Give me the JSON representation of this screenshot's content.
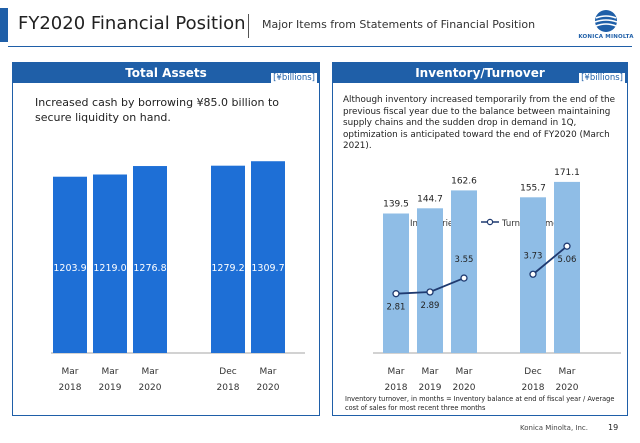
{
  "header": {
    "title": "FY2020 Financial Position",
    "subtitle": "Major Items from Statements of Financial Position",
    "logo_text": "KONICA MINOLTA"
  },
  "left_panel": {
    "title": "Total Assets",
    "unit": "[¥billions]",
    "description": "Increased cash by borrowing ¥85.0 billion to secure liquidity on hand."
  },
  "right_panel": {
    "title": "Inventory/Turnover",
    "unit": "[¥billions]",
    "description": "Although inventory increased temporarily from the end of the previous fiscal year due to the balance between maintaining supply chains and the sudden drop in demand in 1Q, optimization is anticipated toward the end of FY2020 (March 2021).",
    "footnote": "Inventory turnover, in months = Inventory balance at end of fiscal year / Average cost of sales for most recent three months"
  },
  "footer": {
    "company": "Konica Minolta, Inc.",
    "page": "19"
  },
  "colors": {
    "brand": "#1f5fa8",
    "bar_left": "#1e6fd6",
    "bar_right": "#8fbde6",
    "line": "#1f3a70"
  },
  "chart_data": [
    {
      "type": "bar",
      "title": "Total Assets",
      "categories": [
        "Mar 2018",
        "Mar 2019",
        "Mar 2020",
        "Dec 2018",
        "Mar 2020"
      ],
      "category_lines": [
        [
          "Mar",
          "2018"
        ],
        [
          "Mar",
          "2019"
        ],
        [
          "Mar",
          "2020"
        ],
        [
          "Dec",
          "2018"
        ],
        [
          "Mar",
          "2020"
        ]
      ],
      "values": [
        1203.9,
        1219.0,
        1276.8,
        1279.2,
        1309.7
      ],
      "value_labels": [
        "1203.9",
        "1219.0",
        "1276.8",
        "1279.2",
        "1309.7"
      ],
      "ylim": [
        0,
        1400
      ],
      "grid": false
    },
    {
      "type": "bar+line",
      "title": "Inventory/Turnover",
      "categories": [
        "Mar 2018",
        "Mar 2019",
        "Mar 2020",
        "Dec 2018",
        "Mar 2020"
      ],
      "category_lines": [
        [
          "Mar",
          "2018"
        ],
        [
          "Mar",
          "2019"
        ],
        [
          "Mar",
          "2020"
        ],
        [
          "Dec",
          "2018"
        ],
        [
          "Mar",
          "2020"
        ]
      ],
      "legend": [
        "Inventories",
        "Turnover (months)"
      ],
      "legend_position": "top",
      "series": [
        {
          "name": "Inventories",
          "type": "bar",
          "values": [
            139.5,
            144.7,
            162.6,
            155.7,
            171.1
          ],
          "labels": [
            "139.5",
            "144.7",
            "162.6",
            "155.7",
            "171.1"
          ]
        },
        {
          "name": "Turnover (months)",
          "type": "line",
          "values": [
            2.81,
            2.89,
            3.55,
            3.73,
            5.06
          ],
          "labels": [
            "2.81",
            "2.89",
            "3.55",
            "3.73",
            "5.06"
          ],
          "segments": [
            [
              0,
              2
            ],
            [
              3,
              4
            ]
          ]
        }
      ],
      "ylim": [
        0,
        185
      ],
      "y2lim": [
        0,
        9
      ],
      "grid": false
    }
  ]
}
